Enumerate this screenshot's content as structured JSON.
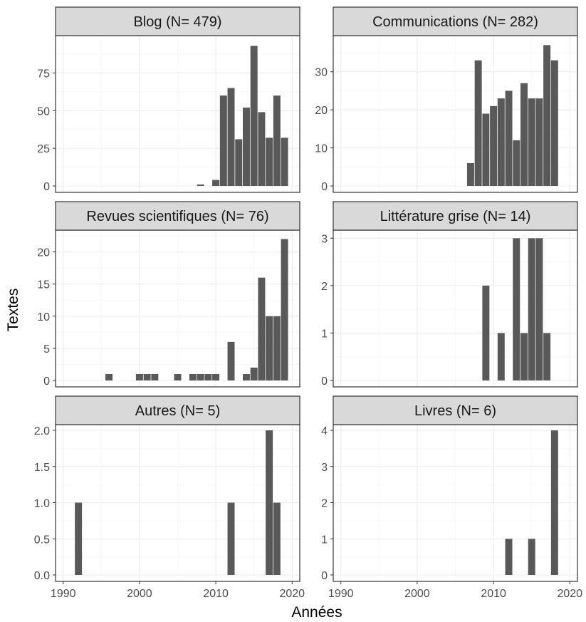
{
  "chart_data": {
    "type": "bar",
    "xlabel": "Années",
    "ylabel": "Textes",
    "xlim": [
      1989,
      2021
    ],
    "xticks": [
      1990,
      2000,
      2010,
      2020
    ],
    "grid": true,
    "bar_color": "#595959",
    "strip_color": "#d9d9d9",
    "panels": [
      {
        "title": "Blog (N= 479)",
        "ylim": [
          0,
          96
        ],
        "yticks": [
          0,
          25,
          50,
          75
        ],
        "ytick_labels": [
          "0",
          "25",
          "50",
          "75"
        ],
        "x": [
          2008,
          2010,
          2011,
          2012,
          2013,
          2014,
          2015,
          2016,
          2017,
          2018,
          2019
        ],
        "values": [
          1,
          4,
          60,
          65,
          31,
          52,
          93,
          49,
          32,
          60,
          32
        ]
      },
      {
        "title": "Communications (N= 282)",
        "ylim": [
          0,
          38
        ],
        "yticks": [
          0,
          10,
          20,
          30
        ],
        "ytick_labels": [
          "0",
          "10",
          "20",
          "30"
        ],
        "x": [
          2007,
          2008,
          2009,
          2010,
          2011,
          2012,
          2013,
          2014,
          2015,
          2016,
          2017,
          2018
        ],
        "values": [
          6,
          33,
          19,
          21,
          23,
          25,
          12,
          27,
          23,
          23,
          37,
          33
        ]
      },
      {
        "title": "Revues scientifiques (N= 76)",
        "ylim": [
          0,
          22.5
        ],
        "yticks": [
          0,
          5,
          10,
          15,
          20
        ],
        "ytick_labels": [
          "0",
          "5",
          "10",
          "15",
          "20"
        ],
        "x": [
          1996,
          2000,
          2001,
          2002,
          2005,
          2007,
          2008,
          2009,
          2010,
          2012,
          2014,
          2015,
          2016,
          2017,
          2018,
          2019
        ],
        "values": [
          1,
          1,
          1,
          1,
          1,
          1,
          1,
          1,
          1,
          6,
          1,
          2,
          16,
          10,
          10,
          22
        ]
      },
      {
        "title": "Littérature grise (N= 14)",
        "ylim": [
          0,
          3.05
        ],
        "yticks": [
          0,
          1,
          2,
          3
        ],
        "ytick_labels": [
          "0",
          "1",
          "2",
          "3"
        ],
        "x": [
          2009,
          2011,
          2013,
          2014,
          2015,
          2016,
          2017
        ],
        "values": [
          2,
          1,
          3,
          1,
          3,
          3,
          1
        ]
      },
      {
        "title": "Autres (N= 5)",
        "ylim": [
          0,
          2.0
        ],
        "yticks": [
          0,
          0.5,
          1.0,
          1.5,
          2.0
        ],
        "ytick_labels": [
          "0.0",
          "0.5",
          "1.0",
          "1.5",
          "2.0"
        ],
        "x": [
          1992,
          2012,
          2017,
          2018
        ],
        "values": [
          1,
          1,
          2,
          1
        ]
      },
      {
        "title": "Livres (N= 6)",
        "ylim": [
          0,
          4.0
        ],
        "yticks": [
          0,
          1,
          2,
          3,
          4
        ],
        "ytick_labels": [
          "0",
          "1",
          "2",
          "3",
          "4"
        ],
        "x": [
          2012,
          2015,
          2018
        ],
        "values": [
          1,
          1,
          4
        ]
      }
    ]
  }
}
